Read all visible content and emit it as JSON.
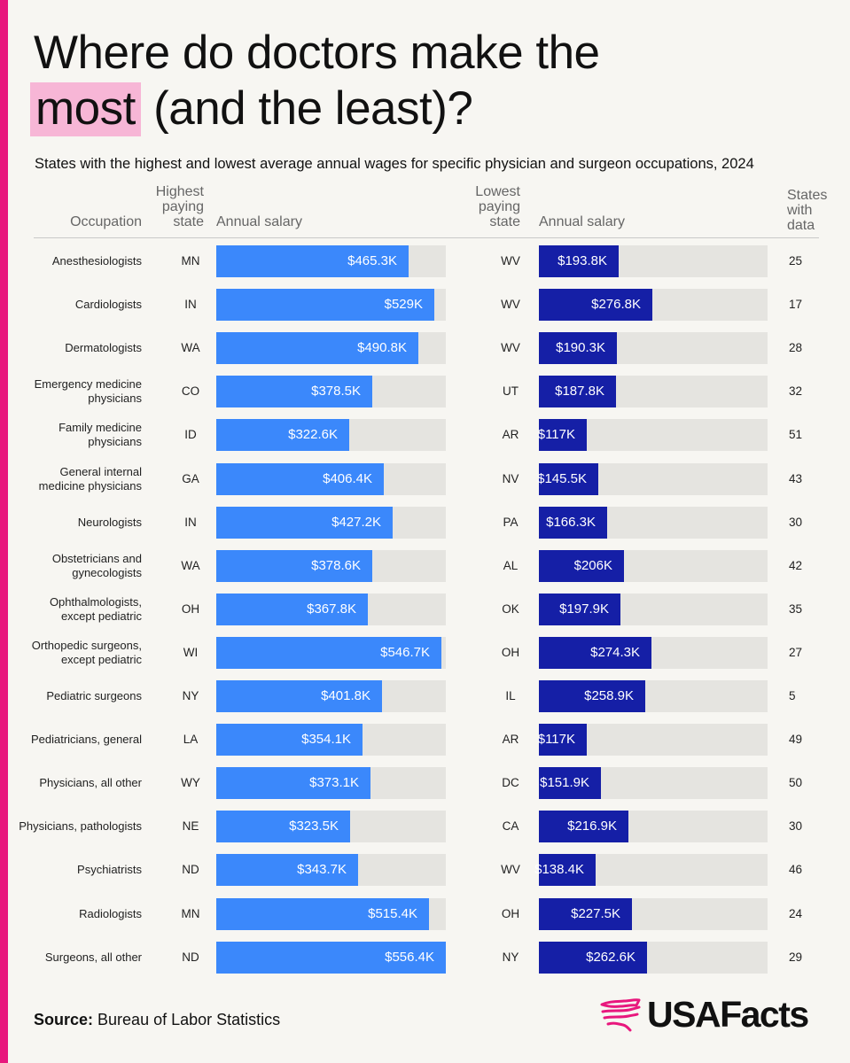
{
  "title": {
    "line1": "Where do doctors make the",
    "highlight": "most",
    "rest": " (and the least)?"
  },
  "subtitle": "States with the highest and lowest average annual wages for specific physician and surgeon occupations, 2024",
  "headers": {
    "occupation": "Occupation",
    "highest_state": [
      "Highest",
      "paying",
      "state"
    ],
    "salary_high": "Annual salary",
    "lowest_state": [
      "Lowest",
      "paying",
      "state"
    ],
    "salary_low": "Annual salary",
    "states_with_data": [
      "States",
      "with",
      "data"
    ]
  },
  "colors": {
    "accent": "#e8177d",
    "highlight": "#f7b6d6",
    "high_bar": "#3b88fb",
    "low_bar": "#151fa6",
    "track": "#e5e4e0",
    "background": "#f7f6f2"
  },
  "chart_data": {
    "type": "bar",
    "title": "Where do doctors make the most (and the least)?",
    "subtitle": "States with the highest and lowest average annual wages for specific physician and surgeon occupations, 2024",
    "units": "USD thousands",
    "xlim": [
      0,
      556.4
    ],
    "rows": [
      {
        "occupation": [
          "Anesthesiologists"
        ],
        "high_state": "MN",
        "high_value": 465.3,
        "high_label": "$465.3K",
        "low_state": "WV",
        "low_value": 193.8,
        "low_label": "$193.8K",
        "states_with_data": "25"
      },
      {
        "occupation": [
          "Cardiologists"
        ],
        "high_state": "IN",
        "high_value": 529,
        "high_label": "$529K",
        "low_state": "WV",
        "low_value": 276.8,
        "low_label": "$276.8K",
        "states_with_data": "17"
      },
      {
        "occupation": [
          "Dermatologists"
        ],
        "high_state": "WA",
        "high_value": 490.8,
        "high_label": "$490.8K",
        "low_state": "WV",
        "low_value": 190.3,
        "low_label": "$190.3K",
        "states_with_data": "28"
      },
      {
        "occupation": [
          "Emergency medicine",
          "physicians"
        ],
        "high_state": "CO",
        "high_value": 378.5,
        "high_label": "$378.5K",
        "low_state": "UT",
        "low_value": 187.8,
        "low_label": "$187.8K",
        "states_with_data": "32"
      },
      {
        "occupation": [
          "Family medicine",
          "physicians"
        ],
        "high_state": "ID",
        "high_value": 322.6,
        "high_label": "$322.6K",
        "low_state": "AR",
        "low_value": 117,
        "low_label": "$117K",
        "states_with_data": "51"
      },
      {
        "occupation": [
          "General internal",
          "medicine physicians"
        ],
        "high_state": "GA",
        "high_value": 406.4,
        "high_label": "$406.4K",
        "low_state": "NV",
        "low_value": 145.5,
        "low_label": "$145.5K",
        "states_with_data": "43"
      },
      {
        "occupation": [
          "Neurologists"
        ],
        "high_state": "IN",
        "high_value": 427.2,
        "high_label": "$427.2K",
        "low_state": "PA",
        "low_value": 166.3,
        "low_label": "$166.3K",
        "states_with_data": "30"
      },
      {
        "occupation": [
          "Obstetricians and",
          "gynecologists"
        ],
        "high_state": "WA",
        "high_value": 378.6,
        "high_label": "$378.6K",
        "low_state": "AL",
        "low_value": 206,
        "low_label": "$206K",
        "states_with_data": "42"
      },
      {
        "occupation": [
          "Ophthalmologists,",
          "except pediatric"
        ],
        "high_state": "OH",
        "high_value": 367.8,
        "high_label": "$367.8K",
        "low_state": "OK",
        "low_value": 197.9,
        "low_label": "$197.9K",
        "states_with_data": "35"
      },
      {
        "occupation": [
          "Orthopedic surgeons,",
          "except pediatric"
        ],
        "high_state": "WI",
        "high_value": 546.7,
        "high_label": "$546.7K",
        "low_state": "OH",
        "low_value": 274.3,
        "low_label": "$274.3K",
        "states_with_data": "27"
      },
      {
        "occupation": [
          "Pediatric surgeons"
        ],
        "high_state": "NY",
        "high_value": 401.8,
        "high_label": "$401.8K",
        "low_state": "IL",
        "low_value": 258.9,
        "low_label": "$258.9K",
        "states_with_data": "5"
      },
      {
        "occupation": [
          "Pediatricians, general"
        ],
        "high_state": "LA",
        "high_value": 354.1,
        "high_label": "$354.1K",
        "low_state": "AR",
        "low_value": 117,
        "low_label": "$117K",
        "states_with_data": "49"
      },
      {
        "occupation": [
          "Physicians, all other"
        ],
        "high_state": "WY",
        "high_value": 373.1,
        "high_label": "$373.1K",
        "low_state": "DC",
        "low_value": 151.9,
        "low_label": "$151.9K",
        "states_with_data": "50"
      },
      {
        "occupation": [
          "Physicians, pathologists"
        ],
        "high_state": "NE",
        "high_value": 323.5,
        "high_label": "$323.5K",
        "low_state": "CA",
        "low_value": 216.9,
        "low_label": "$216.9K",
        "states_with_data": "30"
      },
      {
        "occupation": [
          "Psychiatrists"
        ],
        "high_state": "ND",
        "high_value": 343.7,
        "high_label": "$343.7K",
        "low_state": "WV",
        "low_value": 138.4,
        "low_label": "$138.4K",
        "states_with_data": "46"
      },
      {
        "occupation": [
          "Radiologists"
        ],
        "high_state": "MN",
        "high_value": 515.4,
        "high_label": "$515.4K",
        "low_state": "OH",
        "low_value": 227.5,
        "low_label": "$227.5K",
        "states_with_data": "24"
      },
      {
        "occupation": [
          "Surgeons, all other"
        ],
        "high_state": "ND",
        "high_value": 556.4,
        "high_label": "$556.4K",
        "low_state": "NY",
        "low_value": 262.6,
        "low_label": "$262.6K",
        "states_with_data": "29"
      }
    ]
  },
  "footer": {
    "source_label": "Source:",
    "source_text": " Bureau of Labor Statistics",
    "logo_text": "USAFacts",
    "logo_icon": "usa-map-flag-icon"
  }
}
